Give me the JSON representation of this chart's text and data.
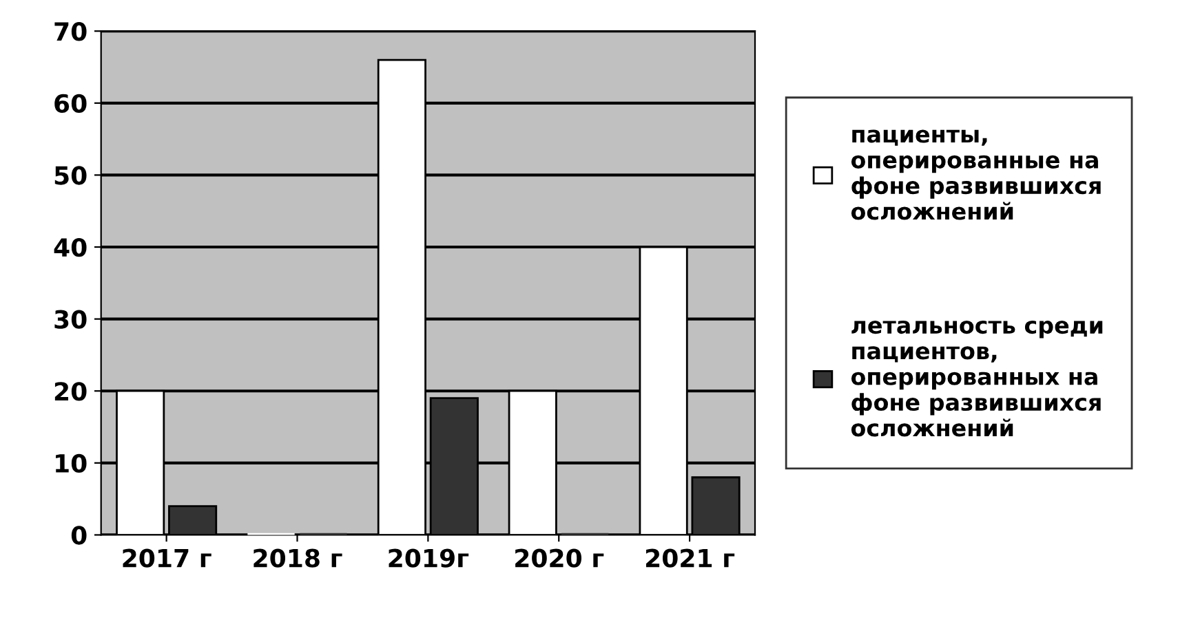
{
  "chart_data": {
    "type": "bar",
    "categories": [
      "2017 г",
      "2018 г",
      "2019г",
      "2020 г",
      "2021 г"
    ],
    "series": [
      {
        "name": "пациенты, оперированные на фоне развившихся осложнений",
        "color": "#ffffff",
        "values": [
          20,
          0,
          66,
          20,
          40
        ]
      },
      {
        "name": "летальность среди пациентов, оперированных на фоне развившихся осложнений",
        "color": "#333333",
        "values": [
          4,
          0,
          19,
          0,
          8
        ]
      }
    ],
    "ylim": [
      0,
      70
    ],
    "yticks": [
      0,
      10,
      20,
      30,
      40,
      50,
      60,
      70
    ],
    "grid": "y",
    "legend": "right"
  }
}
